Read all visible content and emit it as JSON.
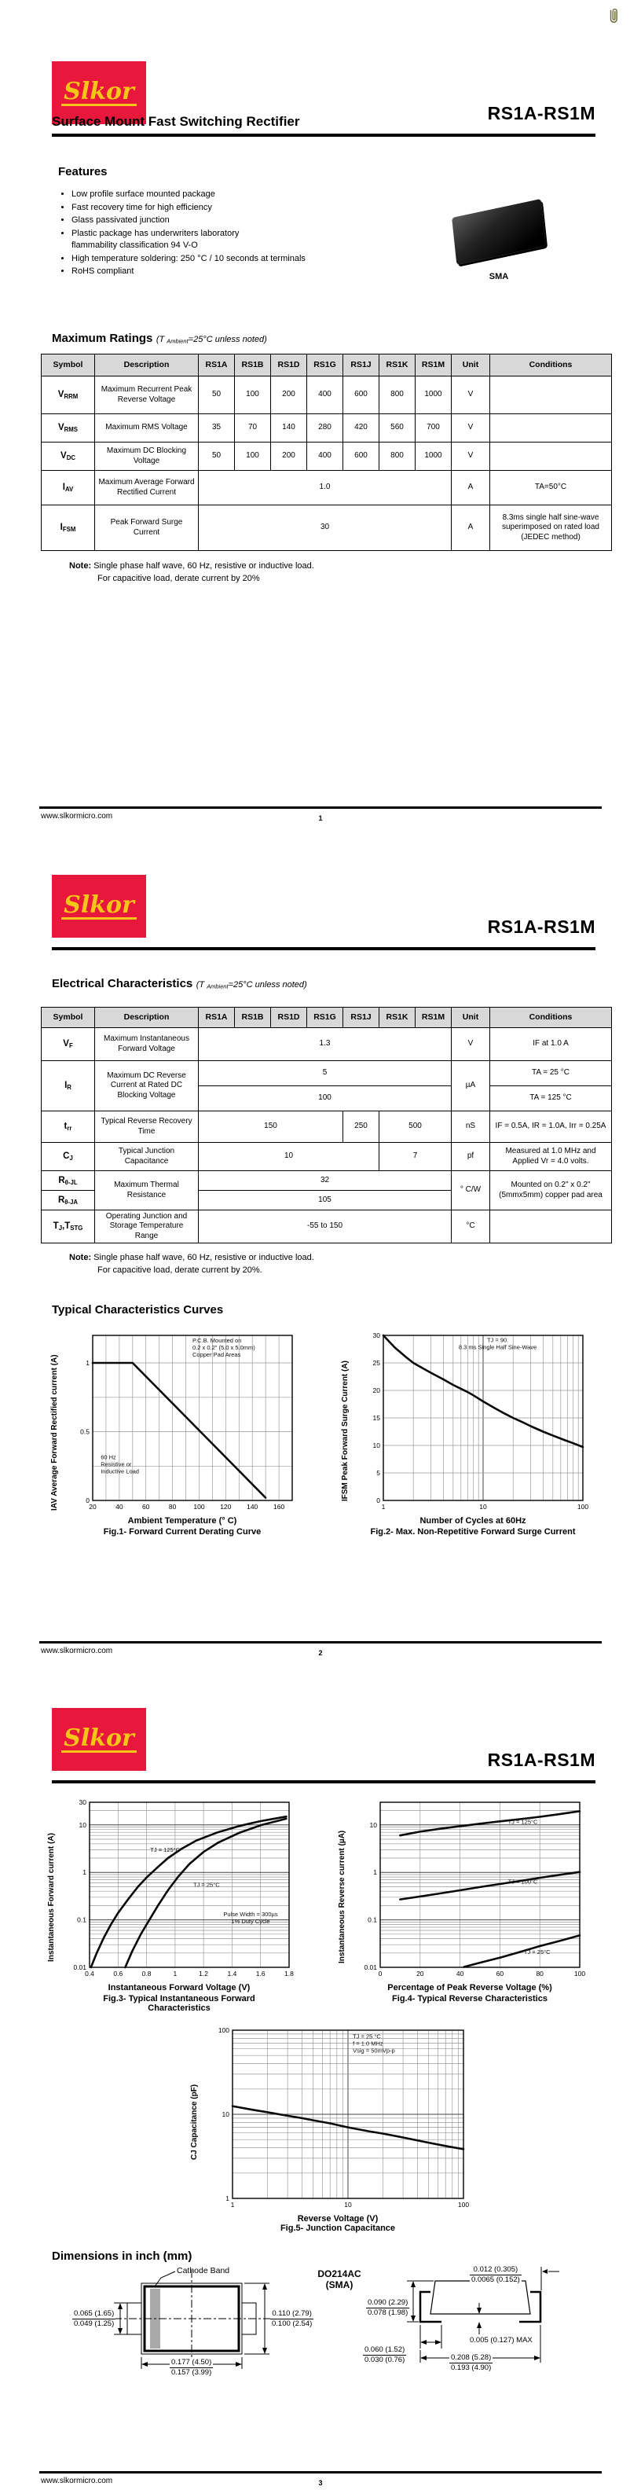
{
  "page": {
    "brand": "Slkor",
    "part": "RS1A-RS1M",
    "site": "www.slkormicro.com",
    "pages": [
      "1",
      "2",
      "3"
    ]
  },
  "meta": {
    "cond_parts": [
      [
        "(T ",
        0
      ],
      [
        "Ambient",
        1
      ],
      [
        "=25°C unless noted)",
        0
      ]
    ]
  },
  "p1": {
    "title": "Surface Mount Fast Switching Rectifier",
    "features_h": "Features",
    "features": [
      "Low profile surface mounted package",
      "Fast recovery time for high efficiency",
      "Glass passivated junction",
      "Plastic package has underwriters laboratory\nflammability classification 94 V-O",
      "High temperature soldering: 250 °C / 10 seconds at terminals",
      "RoHS compliant"
    ],
    "pkg_label": "SMA",
    "ratings_h": "Maximum Ratings"
  },
  "notes": {
    "label": "Note:",
    "l1": "Single phase half wave, 60 Hz, resistive or inductive load.",
    "l2": "For capacitive load, derate current by 20%",
    "l2p": "For capacitive load, derate current by 20%."
  },
  "cols": [
    "Symbol",
    "Description",
    "RS1A",
    "RS1B",
    "RS1D",
    "RS1G",
    "RS1J",
    "RS1K",
    "RS1M",
    "Unit",
    "Conditions"
  ],
  "ratings": {
    "r0": {
      "sym": [
        [
          "V",
          0
        ],
        [
          "RRM",
          1
        ]
      ],
      "desc": "Maximum Recurrent Peak Reverse Voltage",
      "v": [
        "50",
        "100",
        "200",
        "400",
        "600",
        "800",
        "1000"
      ],
      "unit": "V",
      "cond": ""
    },
    "r1": {
      "sym": [
        [
          "V",
          0
        ],
        [
          "RMS",
          1
        ]
      ],
      "desc": "Maximum RMS Voltage",
      "v": [
        "35",
        "70",
        "140",
        "280",
        "420",
        "560",
        "700"
      ],
      "unit": "V",
      "cond": ""
    },
    "r2": {
      "sym": [
        [
          "V",
          0
        ],
        [
          "DC",
          1
        ]
      ],
      "desc": "Maximum DC Blocking Voltage",
      "v": [
        "50",
        "100",
        "200",
        "400",
        "600",
        "800",
        "1000"
      ],
      "unit": "V",
      "cond": ""
    },
    "r3": {
      "sym": [
        [
          "I",
          0
        ],
        [
          "AV",
          1
        ]
      ],
      "desc": "Maximum Average Forward Rectified Current",
      "v": "1.0",
      "unit": "A",
      "cond": "TA=50°C"
    },
    "r4": {
      "sym": [
        [
          "I",
          0
        ],
        [
          "FSM",
          1
        ]
      ],
      "desc": "Peak Forward Surge Current",
      "v": "30",
      "unit": "A",
      "cond": "8.3ms single half sine-wave superimposed on rated load (JEDEC method)"
    }
  },
  "p2": {
    "elec_h": "Electrical Characteristics",
    "curves_h": "Typical Characteristics Curves"
  },
  "elec": {
    "vf": {
      "sym": [
        [
          "V",
          0
        ],
        [
          "F",
          1
        ]
      ],
      "desc": "Maximum Instantaneous Forward Voltage",
      "v": "1.3",
      "unit": "V",
      "cond": "IF at 1.0 A"
    },
    "ir": {
      "sym": [
        [
          "I",
          0
        ],
        [
          "R",
          1
        ]
      ],
      "desc": "Maximum DC Reverse Current at Rated DC Blocking Voltage",
      "v1": "5",
      "v2": "100",
      "unit": "µA",
      "cond1": "TA = 25 °C",
      "cond2": "TA = 125 °C"
    },
    "trr": {
      "sym": [
        [
          "t",
          0
        ],
        [
          "rr",
          1
        ]
      ],
      "desc": "Typical Reverse Recovery Time",
      "v1": "150",
      "v2": "250",
      "v3": "500",
      "unit": "nS",
      "cond": "IF = 0.5A, IR = 1.0A, Irr = 0.25A"
    },
    "cj": {
      "sym": [
        [
          "C",
          0
        ],
        [
          "J",
          1
        ]
      ],
      "desc": "Typical Junction Capacitance",
      "v1": "10",
      "v2": "7",
      "unit": "pf",
      "cond": "Measured at 1.0 MHz and Applied Vr = 4.0 volts."
    },
    "rjl": {
      "sym": [
        [
          "R",
          0
        ],
        [
          "θ-JL",
          1
        ]
      ],
      "v": "32"
    },
    "rja": {
      "sym": [
        [
          "R",
          0
        ],
        [
          "θ-JA",
          1
        ]
      ],
      "v": "105"
    },
    "rth": {
      "desc": "Maximum Thermal Resistance",
      "unit": "° C/W",
      "cond": "Mounted on 0.2\" x 0.2\" (5mmx5mm) copper pad area"
    },
    "tj": {
      "sym": [
        [
          "T",
          0
        ],
        [
          "J",
          1
        ],
        [
          ",T",
          0
        ],
        [
          "STG",
          1
        ]
      ],
      "desc": "Operating Junction and Storage Temperature Range",
      "v": "-55 to 150",
      "unit": "°C",
      "cond": ""
    }
  },
  "chart_data": [
    {
      "type": "line",
      "title": "Fig.1- Forward Current Derating Curve",
      "xlabel": "Ambient Temperature (° C)",
      "ylabel": "IAV Average Forward Rectified current (A)",
      "xscale": "linear",
      "yscale": "linear",
      "xlim": [
        20,
        170
      ],
      "ylim": [
        0,
        1.2
      ],
      "xgrid": 10,
      "ygrid": 0.25,
      "xticks": [
        [
          20,
          "20"
        ],
        [
          40,
          "40"
        ],
        [
          60,
          "60"
        ],
        [
          80,
          "80"
        ],
        [
          100,
          "100"
        ],
        [
          120,
          "120"
        ],
        [
          140,
          "140"
        ],
        [
          160,
          "160"
        ]
      ],
      "yticks": [
        [
          0,
          "0"
        ],
        [
          0.5,
          "0.5"
        ],
        [
          1,
          "1"
        ]
      ],
      "series": [
        {
          "name": "IAV derating",
          "points": [
            [
              20,
              1
            ],
            [
              50,
              1
            ],
            [
              150,
              0.02
            ]
          ]
        }
      ],
      "annotations": [
        {
          "x": 95,
          "y": 1.15,
          "anchor": "start",
          "lines": [
            "P.C.B. Mounted on",
            "0.2 x 0.2\" (5.0 x 5.0mm)",
            "Copper Pad Areas"
          ]
        },
        {
          "x": 26,
          "y": 0.3,
          "anchor": "start",
          "lines": [
            "60 Hz",
            "Resistive or",
            "Inductive Load"
          ]
        }
      ]
    },
    {
      "type": "line",
      "title": "Fig.2- Max. Non-Repetitive Forward Surge Current",
      "xlabel": "Number of Cycles at 60Hz",
      "ylabel": "IFSM Peak Forward Surge Current (A)",
      "xscale": "log",
      "yscale": "linear",
      "xlim": [
        1,
        100
      ],
      "ylim": [
        0,
        30
      ],
      "ygrid": 5,
      "xticks": [
        [
          1,
          "1"
        ],
        [
          10,
          "10"
        ],
        [
          100,
          "100"
        ]
      ],
      "yticks": [
        [
          0,
          "0"
        ],
        [
          5,
          "5"
        ],
        [
          10,
          "10"
        ],
        [
          15,
          "15"
        ],
        [
          20,
          "20"
        ],
        [
          25,
          "25"
        ],
        [
          30,
          "30"
        ]
      ],
      "series": [
        {
          "name": "IFSM",
          "points": [
            [
              1,
              30
            ],
            [
              1.3,
              27.8
            ],
            [
              1.7,
              26
            ],
            [
              2,
              25
            ],
            [
              2.5,
              24
            ],
            [
              3,
              23.2
            ],
            [
              4,
              22
            ],
            [
              5,
              21
            ],
            [
              6,
              20.3
            ],
            [
              7,
              19.7
            ],
            [
              8,
              19.1
            ],
            [
              10,
              18
            ],
            [
              13,
              16.8
            ],
            [
              16,
              15.9
            ],
            [
              20,
              15
            ],
            [
              25,
              14.2
            ],
            [
              30,
              13.5
            ],
            [
              40,
              12.5
            ],
            [
              50,
              11.8
            ],
            [
              65,
              11
            ],
            [
              80,
              10.4
            ],
            [
              100,
              9.7
            ]
          ]
        }
      ],
      "annotations": [
        {
          "x": 14,
          "y": 28.8,
          "anchor": "middle",
          "lines": [
            "TJ = 90.",
            "8.3 ms Single Half Sine-Wave"
          ]
        }
      ]
    },
    {
      "type": "line",
      "title": "Fig.3- Typical Instantaneous Forward Characteristics",
      "xlabel": "Instantaneous Forward Voltage (V)",
      "ylabel": "Instantaneous Forward current (A)",
      "xscale": "linear",
      "yscale": "log",
      "xlim": [
        0.4,
        1.8
      ],
      "ylim": [
        0.01,
        30
      ],
      "xgrid": 0.2,
      "xticks": [
        [
          0.4,
          "0.4"
        ],
        [
          0.6,
          "0.6"
        ],
        [
          0.8,
          "0.8"
        ],
        [
          1,
          "1"
        ],
        [
          1.2,
          "1.2"
        ],
        [
          1.4,
          "1.4"
        ],
        [
          1.6,
          "1.6"
        ],
        [
          1.8,
          "1.8"
        ]
      ],
      "yticks": [
        [
          0.01,
          "0.01"
        ],
        [
          0.1,
          "0.1"
        ],
        [
          1,
          "1"
        ],
        [
          10,
          "10"
        ],
        [
          30,
          "30"
        ]
      ],
      "series": [
        {
          "name": "TJ = 125°C",
          "points": [
            [
              0.41,
              0.01
            ],
            [
              0.45,
              0.02
            ],
            [
              0.5,
              0.042
            ],
            [
              0.55,
              0.08
            ],
            [
              0.6,
              0.14
            ],
            [
              0.67,
              0.27
            ],
            [
              0.74,
              0.5
            ],
            [
              0.8,
              0.78
            ],
            [
              0.88,
              1.3
            ],
            [
              0.95,
              2.0
            ],
            [
              1.05,
              3.2
            ],
            [
              1.15,
              4.7
            ],
            [
              1.3,
              7.0
            ],
            [
              1.45,
              9.5
            ],
            [
              1.6,
              12
            ],
            [
              1.78,
              15
            ]
          ]
        },
        {
          "name": "TJ = 25°C",
          "points": [
            [
              0.65,
              0.01
            ],
            [
              0.7,
              0.022
            ],
            [
              0.76,
              0.05
            ],
            [
              0.82,
              0.1
            ],
            [
              0.88,
              0.2
            ],
            [
              0.95,
              0.42
            ],
            [
              1.02,
              0.8
            ],
            [
              1.1,
              1.5
            ],
            [
              1.2,
              2.7
            ],
            [
              1.3,
              4.2
            ],
            [
              1.45,
              6.8
            ],
            [
              1.6,
              9.8
            ],
            [
              1.78,
              13.5
            ]
          ]
        }
      ],
      "annotations": [
        {
          "x": 0.93,
          "y": 2.7,
          "anchor": "middle",
          "lines": [
            "TJ = 125°C"
          ]
        },
        {
          "x": 1.22,
          "y": 0.5,
          "anchor": "middle",
          "lines": [
            "TJ = 25°C"
          ]
        },
        {
          "x": 1.53,
          "y": 0.12,
          "anchor": "middle",
          "lines": [
            "Pulse Width = 300µs",
            "1% Duty Cycle"
          ]
        }
      ]
    },
    {
      "type": "line",
      "title": "Fig.4- Typical Reverse Characteristics",
      "xlabel": "Percentage of Peak Reverse Voltage (%)",
      "ylabel": "Instantaneous Reverse current (µA)",
      "xscale": "linear",
      "yscale": "log",
      "xlim": [
        0,
        100
      ],
      "ylim": [
        0.01,
        30
      ],
      "xgrid": 20,
      "xticks": [
        [
          0,
          "0"
        ],
        [
          20,
          "20"
        ],
        [
          40,
          "40"
        ],
        [
          60,
          "60"
        ],
        [
          80,
          "80"
        ],
        [
          100,
          "100"
        ]
      ],
      "yticks": [
        [
          0.01,
          "0.01"
        ],
        [
          0.1,
          "0.1"
        ],
        [
          1,
          "1"
        ],
        [
          10,
          "10"
        ]
      ],
      "series": [
        {
          "name": "TJ = 125°C",
          "points": [
            [
              10,
              6
            ],
            [
              20,
              7.2
            ],
            [
              30,
              8.3
            ],
            [
              40,
              9.4
            ],
            [
              50,
              10.6
            ],
            [
              60,
              11.9
            ],
            [
              70,
              13.2
            ],
            [
              80,
              14.8
            ],
            [
              90,
              16.9
            ],
            [
              100,
              19.5
            ]
          ]
        },
        {
          "name": "TJ = 100°C",
          "points": [
            [
              10,
              0.27
            ],
            [
              20,
              0.31
            ],
            [
              30,
              0.36
            ],
            [
              40,
              0.42
            ],
            [
              50,
              0.49
            ],
            [
              60,
              0.57
            ],
            [
              70,
              0.66
            ],
            [
              80,
              0.77
            ],
            [
              90,
              0.89
            ],
            [
              100,
              1.02
            ]
          ]
        },
        {
          "name": "TJ = 25°C",
          "points": [
            [
              42,
              0.0102
            ],
            [
              50,
              0.0125
            ],
            [
              60,
              0.016
            ],
            [
              70,
              0.021
            ],
            [
              80,
              0.028
            ],
            [
              90,
              0.036
            ],
            [
              100,
              0.047
            ]
          ]
        }
      ],
      "annotations": [
        {
          "x": 64,
          "y": 10.5,
          "anchor": "start",
          "lines": [
            "TJ = 125°C"
          ]
        },
        {
          "x": 64,
          "y": 0.58,
          "anchor": "start",
          "lines": [
            "TJ = 100°C"
          ]
        },
        {
          "x": 72,
          "y": 0.019,
          "anchor": "start",
          "lines": [
            "TJ = 25°C"
          ]
        }
      ]
    },
    {
      "type": "line",
      "title": "Fig.5- Junction Capacitance",
      "xlabel": "Reverse Voltage (V)",
      "ylabel": "CJ Capacitance (pF)",
      "xscale": "log",
      "yscale": "log",
      "xlim": [
        1,
        100
      ],
      "ylim": [
        1,
        100
      ],
      "xticks": [
        [
          1,
          "1"
        ],
        [
          10,
          "10"
        ],
        [
          100,
          "100"
        ]
      ],
      "yticks": [
        [
          1,
          "1"
        ],
        [
          10,
          "10"
        ],
        [
          100,
          "100"
        ]
      ],
      "series": [
        {
          "name": "CJ",
          "points": [
            [
              1,
              12.5
            ],
            [
              1.5,
              11.3
            ],
            [
              2,
              10.6
            ],
            [
              3,
              9.6
            ],
            [
              4,
              9.0
            ],
            [
              5,
              8.5
            ],
            [
              7,
              7.8
            ],
            [
              10,
              7.0
            ],
            [
              15,
              6.3
            ],
            [
              20,
              5.9
            ],
            [
              30,
              5.3
            ],
            [
              50,
              4.6
            ],
            [
              70,
              4.2
            ],
            [
              100,
              3.85
            ]
          ]
        }
      ],
      "annotations": [
        {
          "x": 11,
          "y": 80,
          "anchor": "start",
          "lines": [
            "TJ = 25 °C",
            "f = 1.0 MHz",
            "Vsig = 50mVp-p"
          ]
        }
      ]
    }
  ],
  "p3": {
    "dim_h": "Dimensions in inch (mm)",
    "pkg_name1": "DO214AC",
    "pkg_name2": "(SMA)",
    "cathode": "Cathode Band",
    "top_dims": {
      "l1": "0.065 (1.65)",
      "l2": "0.049 (1.25)",
      "r1": "0.110 (2.79)",
      "r2": "0.100 (2.54)",
      "b1": "0.177 (4.50)",
      "b2": "0.157 (3.99)"
    },
    "side_dims": {
      "t1": "0.012 (0.305)",
      "t2": "0.0065 (0.152)",
      "l1": "0.090 (2.29)",
      "l2": "0.078 (1.98)",
      "bl1": "0.060 (1.52)",
      "bl2": "0.030 (0.76)",
      "max": "0.005 (0.127) MAX",
      "b1": "0.208 (5.28)",
      "b2": "0.193 (4.90)"
    }
  }
}
